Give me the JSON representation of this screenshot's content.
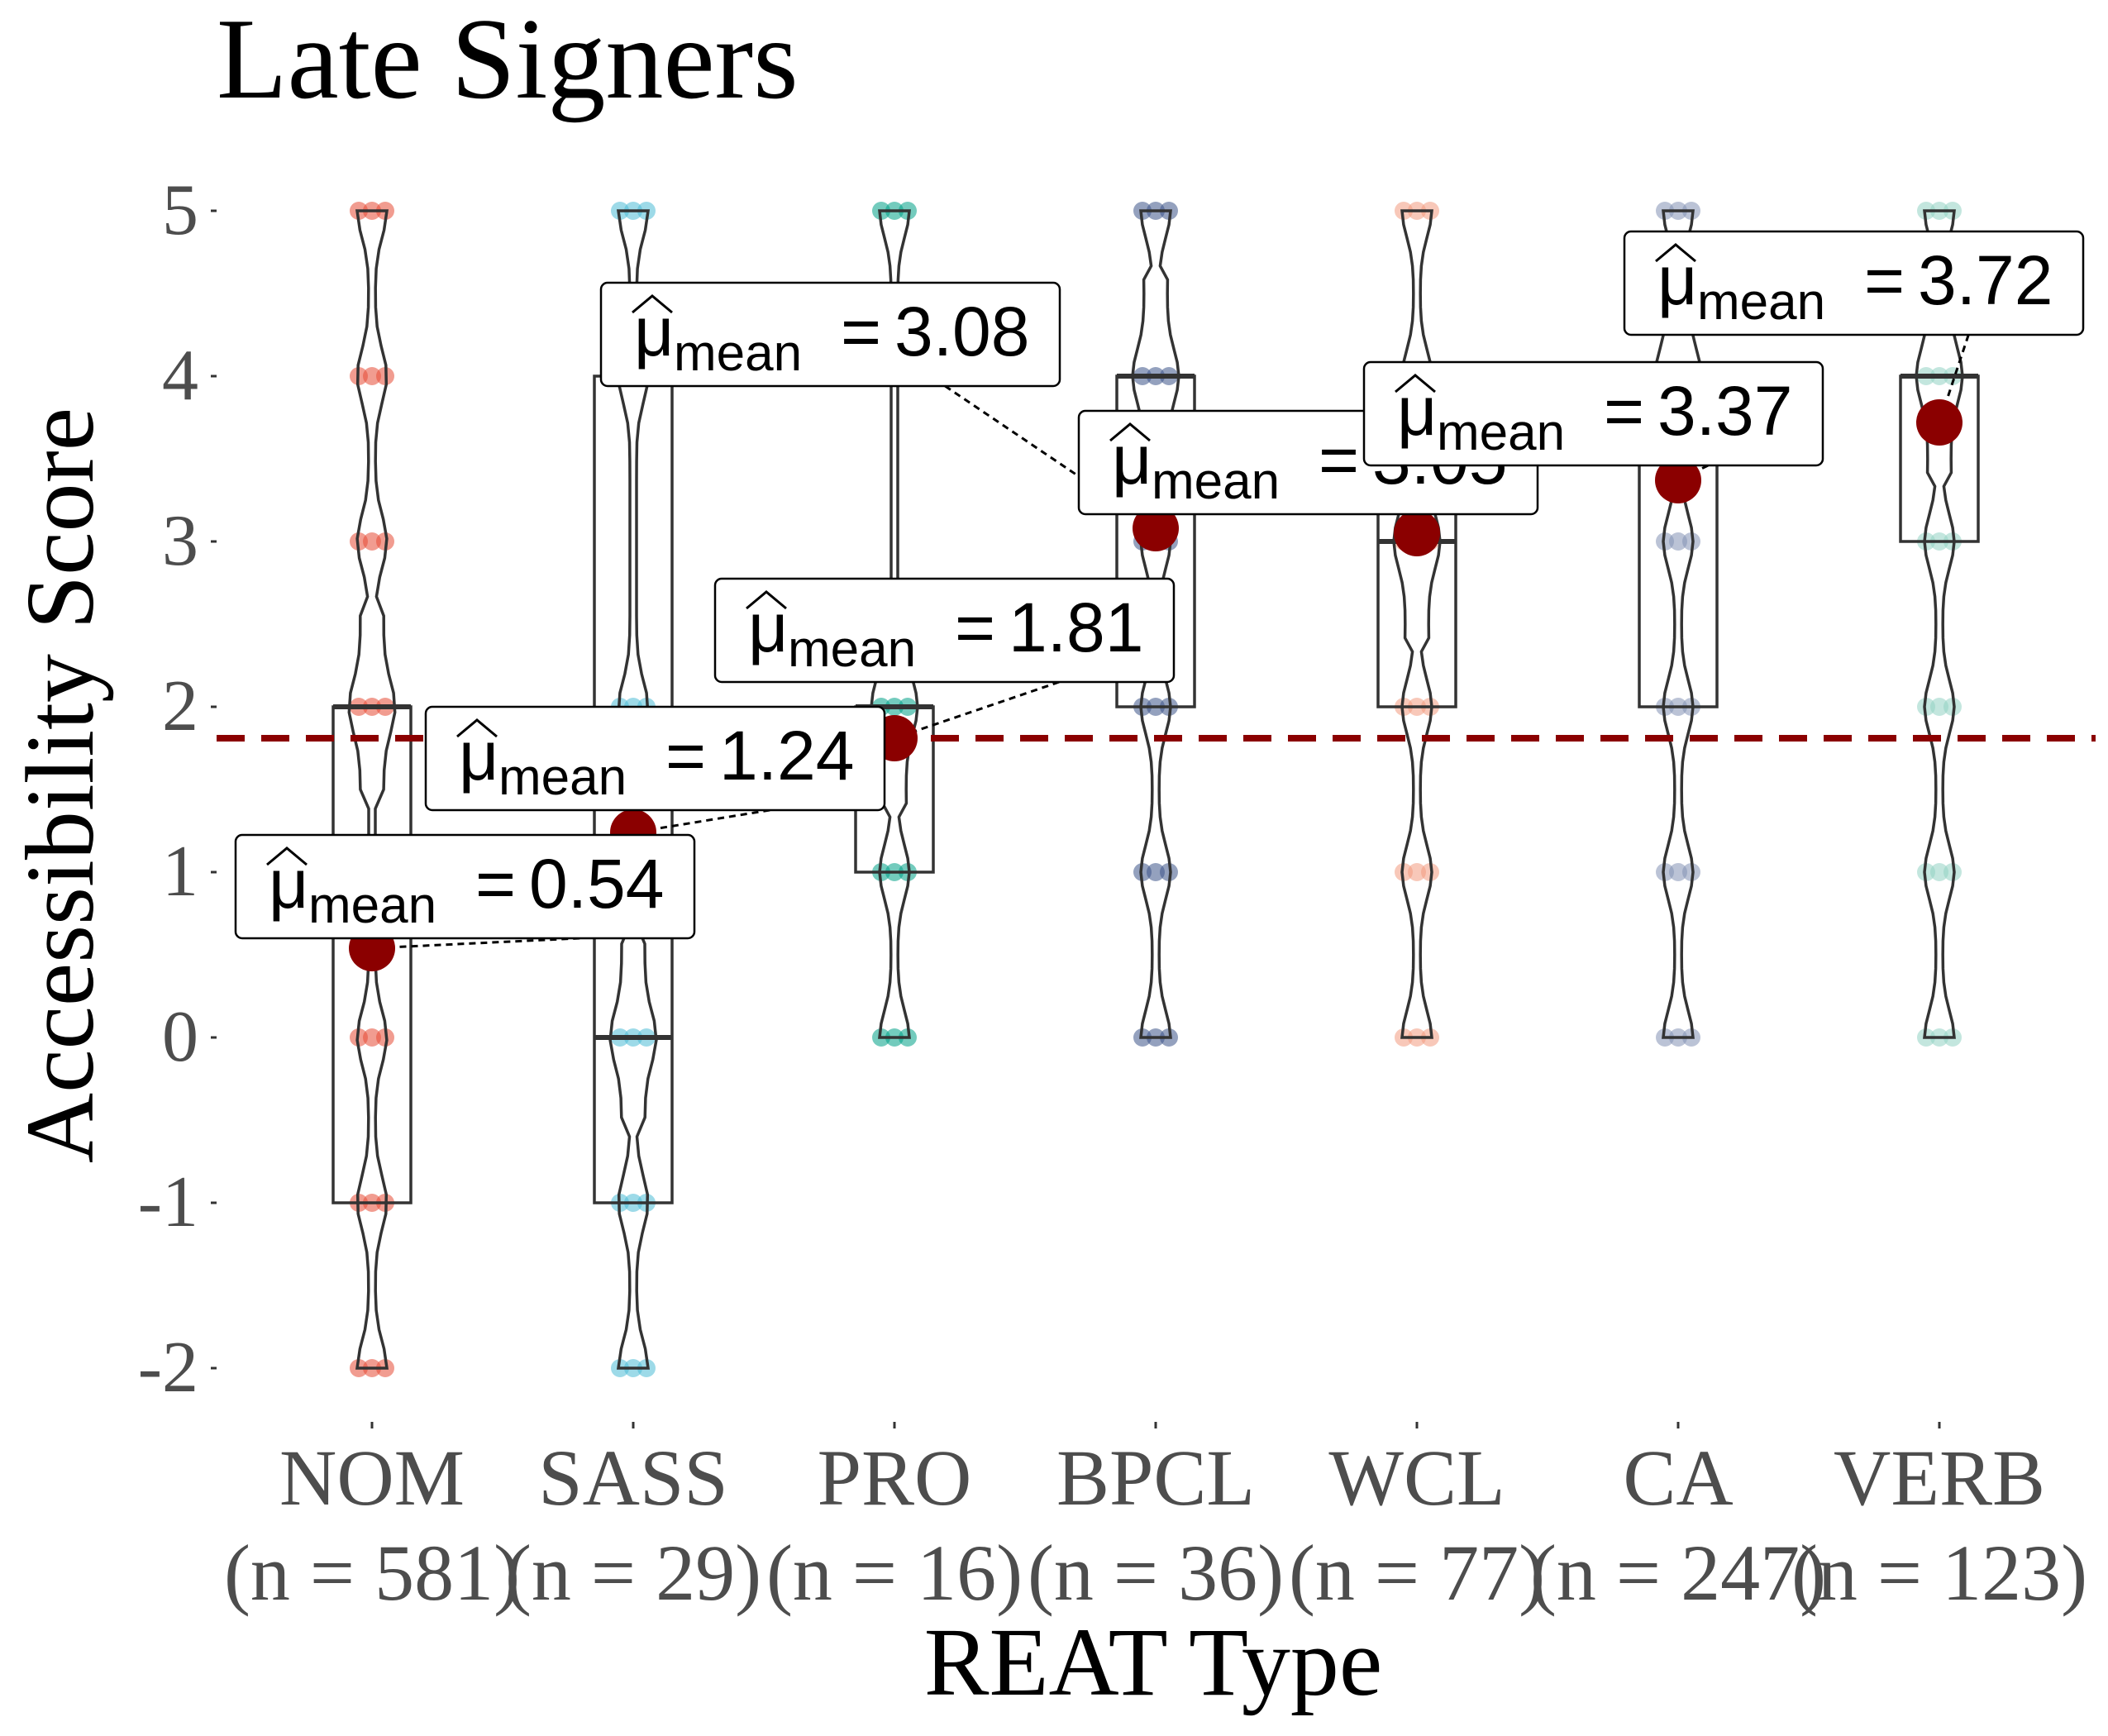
{
  "chart_data": {
    "type": "box",
    "title": "Late Signers",
    "xlabel": "REAT Type",
    "ylabel": "Accessibility Score",
    "ylim": [
      -2.4,
      5.4
    ],
    "yticks": [
      "-2",
      "-1",
      "0",
      "1",
      "2",
      "3",
      "4",
      "5"
    ],
    "reference_line": {
      "value": 1.81,
      "style": "dashed",
      "color": "#8b0000"
    },
    "mean_symbol": "μ",
    "mean_subscript": "mean",
    "grid": false,
    "legend": "none",
    "categories": [
      {
        "name": "NOM",
        "n_label": "(n = 581)",
        "color": "#e64b35",
        "mean": 0.54,
        "mean_label": "0.54",
        "box": {
          "q1": -1,
          "median": 2,
          "q3": 2
        },
        "whisker": [
          -2,
          5
        ],
        "points": [
          -2,
          -1,
          0,
          2,
          3,
          4,
          5
        ]
      },
      {
        "name": "SASS",
        "n_label": "(n = 29)",
        "color": "#4dbbd5",
        "mean": 1.24,
        "mean_label": "1.24",
        "box": {
          "q1": -1,
          "median": 0,
          "q3": 4
        },
        "whisker": [
          -2,
          5
        ],
        "points": [
          -2,
          -1,
          0,
          2,
          4,
          5
        ]
      },
      {
        "name": "PRO",
        "n_label": "(n = 16)",
        "color": "#00a087",
        "mean": 1.81,
        "mean_label": "1.81",
        "box": {
          "q1": 1,
          "median": 2,
          "q3": 2
        },
        "whisker": [
          0,
          5
        ],
        "points": [
          0,
          1,
          2,
          5
        ]
      },
      {
        "name": "BPCL",
        "n_label": "(n = 36)",
        "color": "#3c5488",
        "mean": 3.08,
        "mean_label": "3.08",
        "box": {
          "q1": 2,
          "median": 4,
          "q3": 4
        },
        "whisker": [
          0,
          5
        ],
        "points": [
          0,
          1,
          2,
          3,
          4,
          5
        ]
      },
      {
        "name": "WCL",
        "n_label": "(n = 77)",
        "color": "#f39b7f",
        "mean": 3.05,
        "mean_label": "3.05",
        "box": {
          "q1": 2,
          "median": 3,
          "q3": 4
        },
        "whisker": [
          0,
          5
        ],
        "points": [
          0,
          1,
          2,
          3,
          4,
          5
        ]
      },
      {
        "name": "CA",
        "n_label": "(n = 247)",
        "color": "#8491b4",
        "mean": 3.37,
        "mean_label": "3.37",
        "box": {
          "q1": 2,
          "median": 4,
          "q3": 4
        },
        "whisker": [
          0,
          5
        ],
        "points": [
          0,
          1,
          2,
          3,
          4,
          5
        ]
      },
      {
        "name": "VERB",
        "n_label": "(n = 123)",
        "color": "#91d1c2",
        "mean": 3.72,
        "mean_label": "3.72",
        "box": {
          "q1": 3,
          "median": 4,
          "q3": 4
        },
        "whisker": [
          0,
          5
        ],
        "points": [
          0,
          1,
          2,
          3,
          4,
          5
        ]
      }
    ]
  }
}
